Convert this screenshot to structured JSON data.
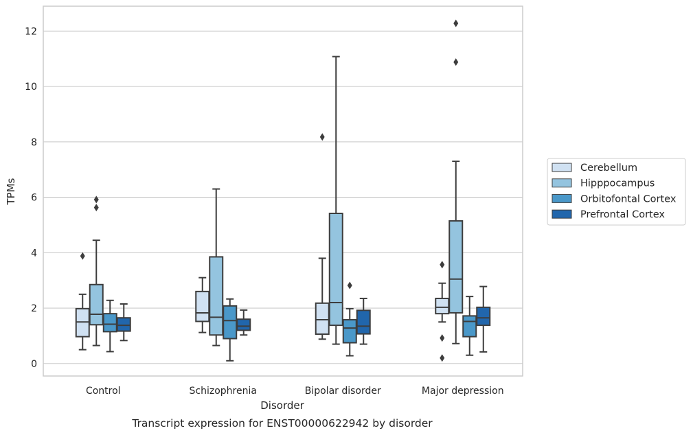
{
  "caption": "Transcript expression for ENST00000622942 by disorder",
  "chart_data": {
    "type": "box",
    "xlabel": "Disorder",
    "ylabel": "TPMs",
    "ylim": [
      -0.45,
      12.9
    ],
    "yticks": [
      0,
      2,
      4,
      6,
      8,
      10,
      12
    ],
    "categories": [
      "Control",
      "Schizophrenia",
      "Bipolar disorder",
      "Major depression"
    ],
    "grid": "horizontal",
    "legend_position": "right",
    "series": [
      {
        "name": "Cerebellum",
        "color": "#d0e1f2",
        "boxes": [
          {
            "whislo": 0.5,
            "q1": 0.97,
            "med": 1.5,
            "q3": 1.98,
            "whishi": 2.5,
            "fliers": [
              3.88
            ]
          },
          {
            "whislo": 1.12,
            "q1": 1.52,
            "med": 1.83,
            "q3": 2.6,
            "whishi": 3.1,
            "fliers": []
          },
          {
            "whislo": 0.88,
            "q1": 1.06,
            "med": 1.58,
            "q3": 2.18,
            "whishi": 3.8,
            "fliers": [
              8.18
            ]
          },
          {
            "whislo": 1.5,
            "q1": 1.8,
            "med": 2.03,
            "q3": 2.35,
            "whishi": 2.9,
            "fliers": [
              3.57,
              0.92,
              0.2
            ]
          }
        ]
      },
      {
        "name": "Hipppocampus",
        "color": "#94c4df",
        "boxes": [
          {
            "whislo": 0.65,
            "q1": 1.4,
            "med": 1.78,
            "q3": 2.85,
            "whishi": 4.45,
            "fliers": [
              5.63,
              5.92
            ]
          },
          {
            "whislo": 0.65,
            "q1": 1.03,
            "med": 1.67,
            "q3": 3.85,
            "whishi": 6.3,
            "fliers": []
          },
          {
            "whislo": 0.7,
            "q1": 1.38,
            "med": 2.2,
            "q3": 5.42,
            "whishi": 11.08,
            "fliers": []
          },
          {
            "whislo": 0.72,
            "q1": 1.83,
            "med": 3.05,
            "q3": 5.15,
            "whishi": 7.3,
            "fliers": [
              10.88,
              12.28
            ]
          }
        ]
      },
      {
        "name": "Orbitofontal Cortex",
        "color": "#4a98c9",
        "boxes": [
          {
            "whislo": 0.43,
            "q1": 1.15,
            "med": 1.42,
            "q3": 1.8,
            "whishi": 2.28,
            "fliers": []
          },
          {
            "whislo": 0.1,
            "q1": 0.9,
            "med": 1.55,
            "q3": 2.08,
            "whishi": 2.33,
            "fliers": []
          },
          {
            "whislo": 0.28,
            "q1": 0.75,
            "med": 1.28,
            "q3": 1.58,
            "whishi": 1.98,
            "fliers": [
              2.82
            ]
          },
          {
            "whislo": 0.3,
            "q1": 0.97,
            "med": 1.52,
            "q3": 1.72,
            "whishi": 2.42,
            "fliers": []
          }
        ]
      },
      {
        "name": "Prefrontal Cortex",
        "color": "#2166ac",
        "boxes": [
          {
            "whislo": 0.83,
            "q1": 1.17,
            "med": 1.38,
            "q3": 1.65,
            "whishi": 2.15,
            "fliers": []
          },
          {
            "whislo": 1.03,
            "q1": 1.2,
            "med": 1.35,
            "q3": 1.6,
            "whishi": 1.93,
            "fliers": []
          },
          {
            "whislo": 0.7,
            "q1": 1.07,
            "med": 1.35,
            "q3": 1.92,
            "whishi": 2.35,
            "fliers": []
          },
          {
            "whislo": 0.42,
            "q1": 1.38,
            "med": 1.65,
            "q3": 2.03,
            "whishi": 2.78,
            "fliers": []
          }
        ]
      }
    ]
  }
}
